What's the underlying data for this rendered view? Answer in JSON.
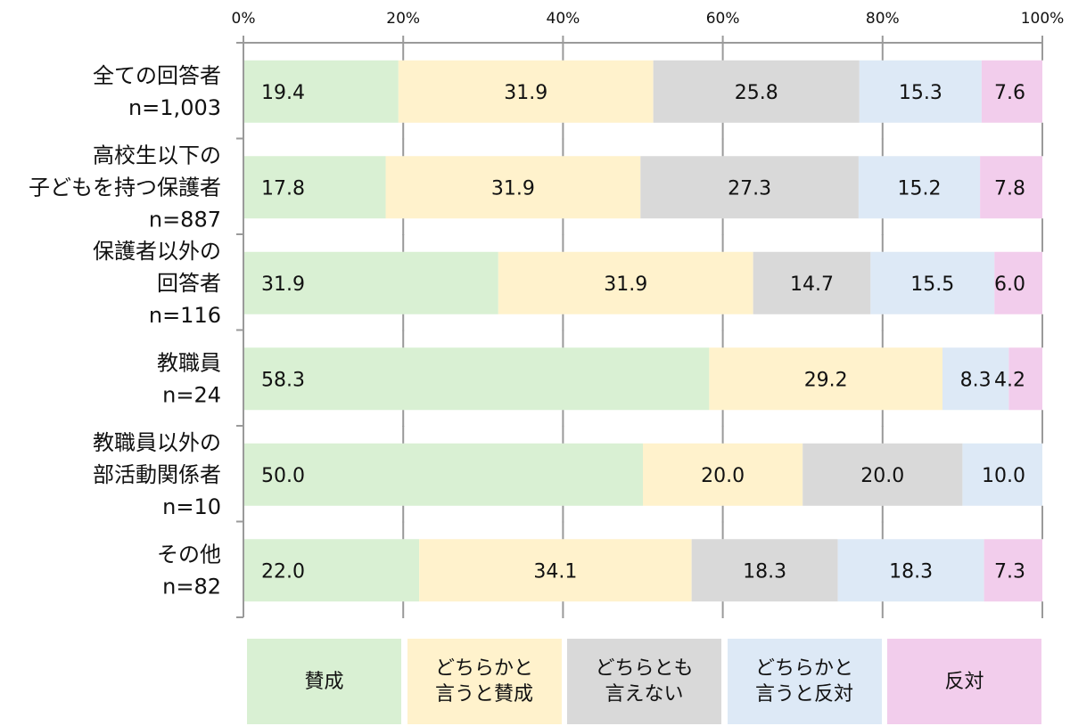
{
  "chart_data": {
    "type": "bar",
    "orientation": "horizontal",
    "stacked": true,
    "categories": [
      "全ての回答者\nn=1,003",
      "高校生以下の\n子どもを持つ保護者\nn=887",
      "保護者以外の\n回答者\nn=116",
      "教職員\nn=24",
      "教職員以外の\n部活動関係者\nn=10",
      "その他\nn=82"
    ],
    "series": [
      {
        "name": "賛成",
        "color": "#d9f0d3",
        "values": [
          19.4,
          17.8,
          31.9,
          58.3,
          50.0,
          22.0
        ]
      },
      {
        "name": "どちらかと\n言うと賛成",
        "color": "#fff2cc",
        "values": [
          31.9,
          31.9,
          31.9,
          29.2,
          20.0,
          34.1
        ]
      },
      {
        "name": "どちらとも\n言えない",
        "color": "#d9d9d9",
        "values": [
          25.8,
          27.3,
          14.7,
          0,
          20.0,
          18.3
        ]
      },
      {
        "name": "どちらかと\n言うと反対",
        "color": "#dde9f6",
        "values": [
          15.3,
          15.2,
          15.5,
          8.3,
          10.0,
          18.3
        ]
      },
      {
        "name": "反対",
        "color": "#f2cdec",
        "values": [
          7.6,
          7.8,
          6.0,
          4.2,
          0,
          7.3
        ]
      }
    ],
    "xlim": [
      0,
      100
    ],
    "xticks": [
      "0%",
      "20%",
      "40%",
      "60%",
      "80%",
      "100%"
    ],
    "grid": true,
    "axis_position": "top",
    "legend_position": "bottom"
  }
}
